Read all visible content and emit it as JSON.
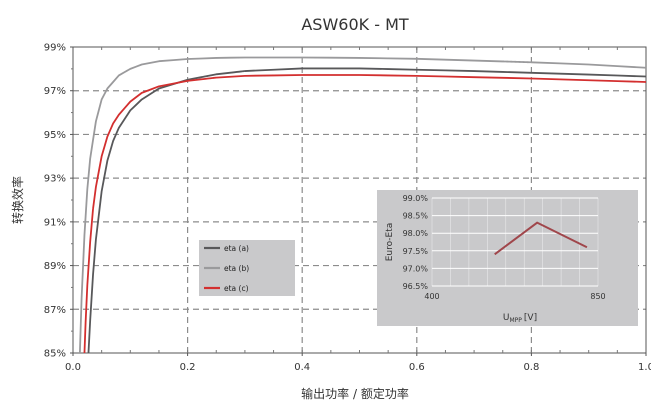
{
  "chart_data": [
    {
      "type": "line",
      "title": "ASW60K - MT",
      "xlabel": "输出功率 / 额定功率",
      "ylabel": "转换效率",
      "xlim": [
        0.0,
        1.0
      ],
      "ylim": [
        85,
        99
      ],
      "x_ticks": [
        "0.0",
        "0.2",
        "0.4",
        "0.6",
        "0.8",
        "1.0"
      ],
      "y_ticks": [
        "85%",
        "87%",
        "89%",
        "91%",
        "93%",
        "95%",
        "97%",
        "99%"
      ],
      "grid": true,
      "legend_position": "center-left",
      "series": [
        {
          "name": "eta (a)",
          "color": "#58585a",
          "x": [
            0.027,
            0.03,
            0.035,
            0.04,
            0.05,
            0.06,
            0.07,
            0.08,
            0.1,
            0.12,
            0.15,
            0.2,
            0.25,
            0.3,
            0.4,
            0.5,
            0.6,
            0.7,
            0.8,
            0.9,
            1.0
          ],
          "y": [
            85.0,
            86.5,
            88.6,
            90.2,
            92.4,
            93.8,
            94.7,
            95.3,
            96.1,
            96.6,
            97.1,
            97.5,
            97.75,
            97.9,
            98.02,
            98.02,
            97.96,
            97.9,
            97.82,
            97.74,
            97.65
          ]
        },
        {
          "name": "eta (b)",
          "color": "#9a9a9c",
          "x": [
            0.012,
            0.015,
            0.02,
            0.025,
            0.03,
            0.04,
            0.05,
            0.06,
            0.08,
            0.1,
            0.12,
            0.15,
            0.2,
            0.25,
            0.3,
            0.4,
            0.5,
            0.6,
            0.7,
            0.8,
            0.9,
            1.0
          ],
          "y": [
            85.0,
            87.5,
            90.4,
            92.5,
            93.9,
            95.6,
            96.6,
            97.1,
            97.7,
            98.0,
            98.2,
            98.35,
            98.45,
            98.5,
            98.52,
            98.52,
            98.5,
            98.46,
            98.38,
            98.3,
            98.2,
            98.05
          ]
        },
        {
          "name": "eta (c)",
          "color": "#d32f2f",
          "x": [
            0.02,
            0.022,
            0.025,
            0.03,
            0.035,
            0.04,
            0.05,
            0.06,
            0.07,
            0.08,
            0.1,
            0.12,
            0.15,
            0.2,
            0.25,
            0.3,
            0.4,
            0.5,
            0.6,
            0.7,
            0.8,
            0.9,
            1.0
          ],
          "y": [
            85.0,
            86.4,
            88.1,
            90.1,
            91.6,
            92.6,
            94.0,
            94.9,
            95.5,
            95.9,
            96.5,
            96.9,
            97.2,
            97.45,
            97.6,
            97.68,
            97.72,
            97.72,
            97.68,
            97.62,
            97.56,
            97.48,
            97.4
          ]
        }
      ]
    },
    {
      "type": "line",
      "title": "",
      "xlabel": "U",
      "xlabel_sub": "MPP",
      "xlabel_unit": "[V]",
      "ylabel": "Euro-Eta",
      "xlim": [
        400,
        850
      ],
      "ylim": [
        96.5,
        99.0
      ],
      "x_ticks": [
        "400",
        "850"
      ],
      "y_ticks": [
        "96.5%",
        "97.0%",
        "97.5%",
        "98.0%",
        "98.5%",
        "99.0%"
      ],
      "grid": true,
      "series": [
        {
          "color": "#a0464b",
          "x": [
            570,
            685,
            820
          ],
          "y": [
            97.4,
            98.3,
            97.6
          ]
        }
      ]
    }
  ]
}
